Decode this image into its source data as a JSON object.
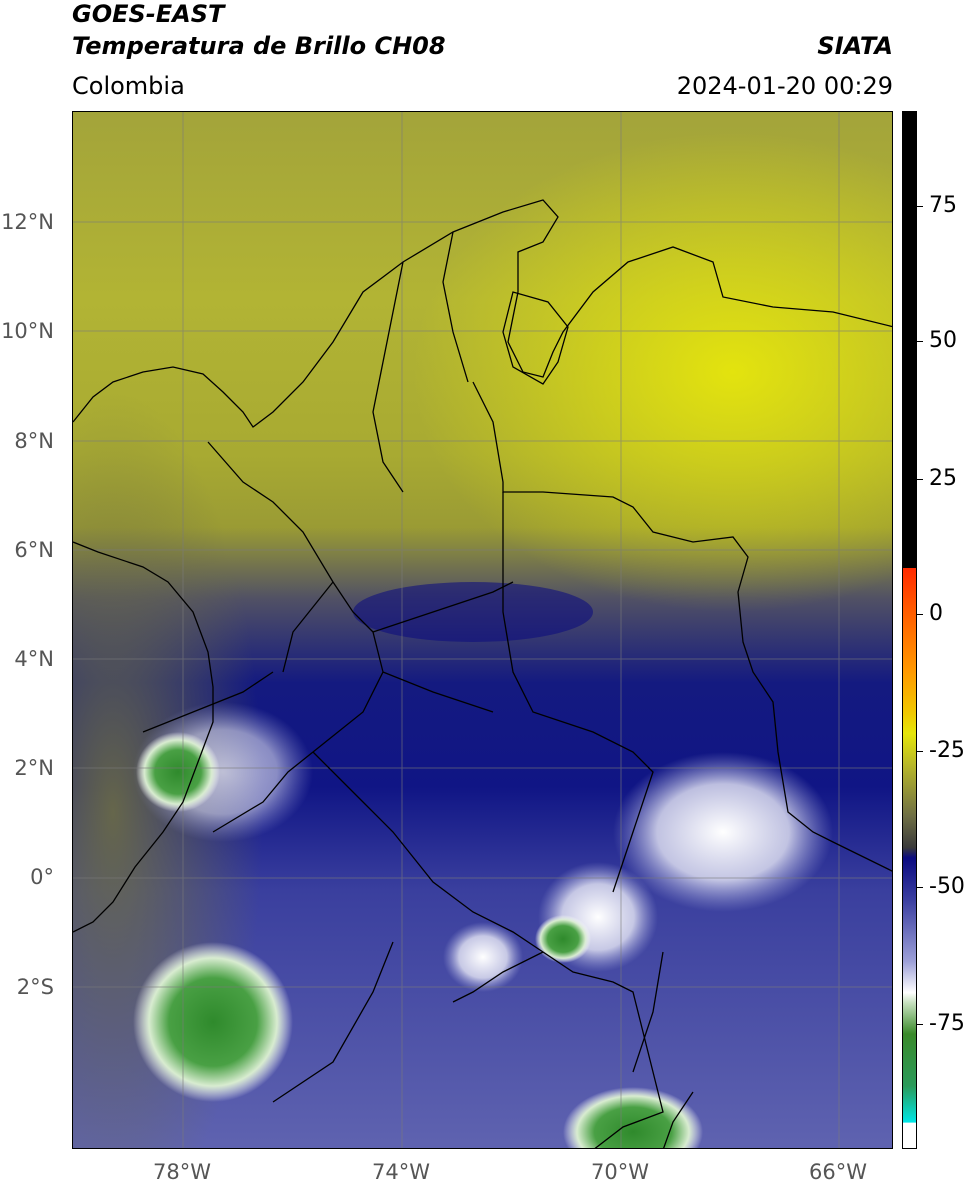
{
  "header": {
    "title_line1": "GOES-EAST",
    "title_line2": "Temperatura de Brillo CH08",
    "region": "Colombia",
    "organization": "SIATA",
    "timestamp": "2024-01-20 00:29"
  },
  "map": {
    "lat_ticks": [
      "12°N",
      "10°N",
      "8°N",
      "6°N",
      "4°N",
      "2°N",
      "0°",
      "2°S"
    ],
    "lon_ticks": [
      "78°W",
      "74°W",
      "70°W",
      "66°W"
    ],
    "extent": {
      "lon_min": -80,
      "lon_max": -65,
      "lat_min": -5,
      "lat_max": 14
    }
  },
  "colorbar": {
    "labels": [
      "75",
      "50",
      "25",
      "0",
      "-25",
      "-50",
      "-75"
    ],
    "colors": {
      "black_range": "#000000",
      "warm_red": "#ff2a00",
      "warm_orange": "#ff9900",
      "yellow": "#e5e60a",
      "olive": "#8a8a3a",
      "dark_gray": "#3a3a3a",
      "navy": "#0a0a80",
      "light_blue": "#9da0d8",
      "white": "#ffffff",
      "green": "#3a8a2a",
      "cyan": "#00e6e6"
    }
  }
}
